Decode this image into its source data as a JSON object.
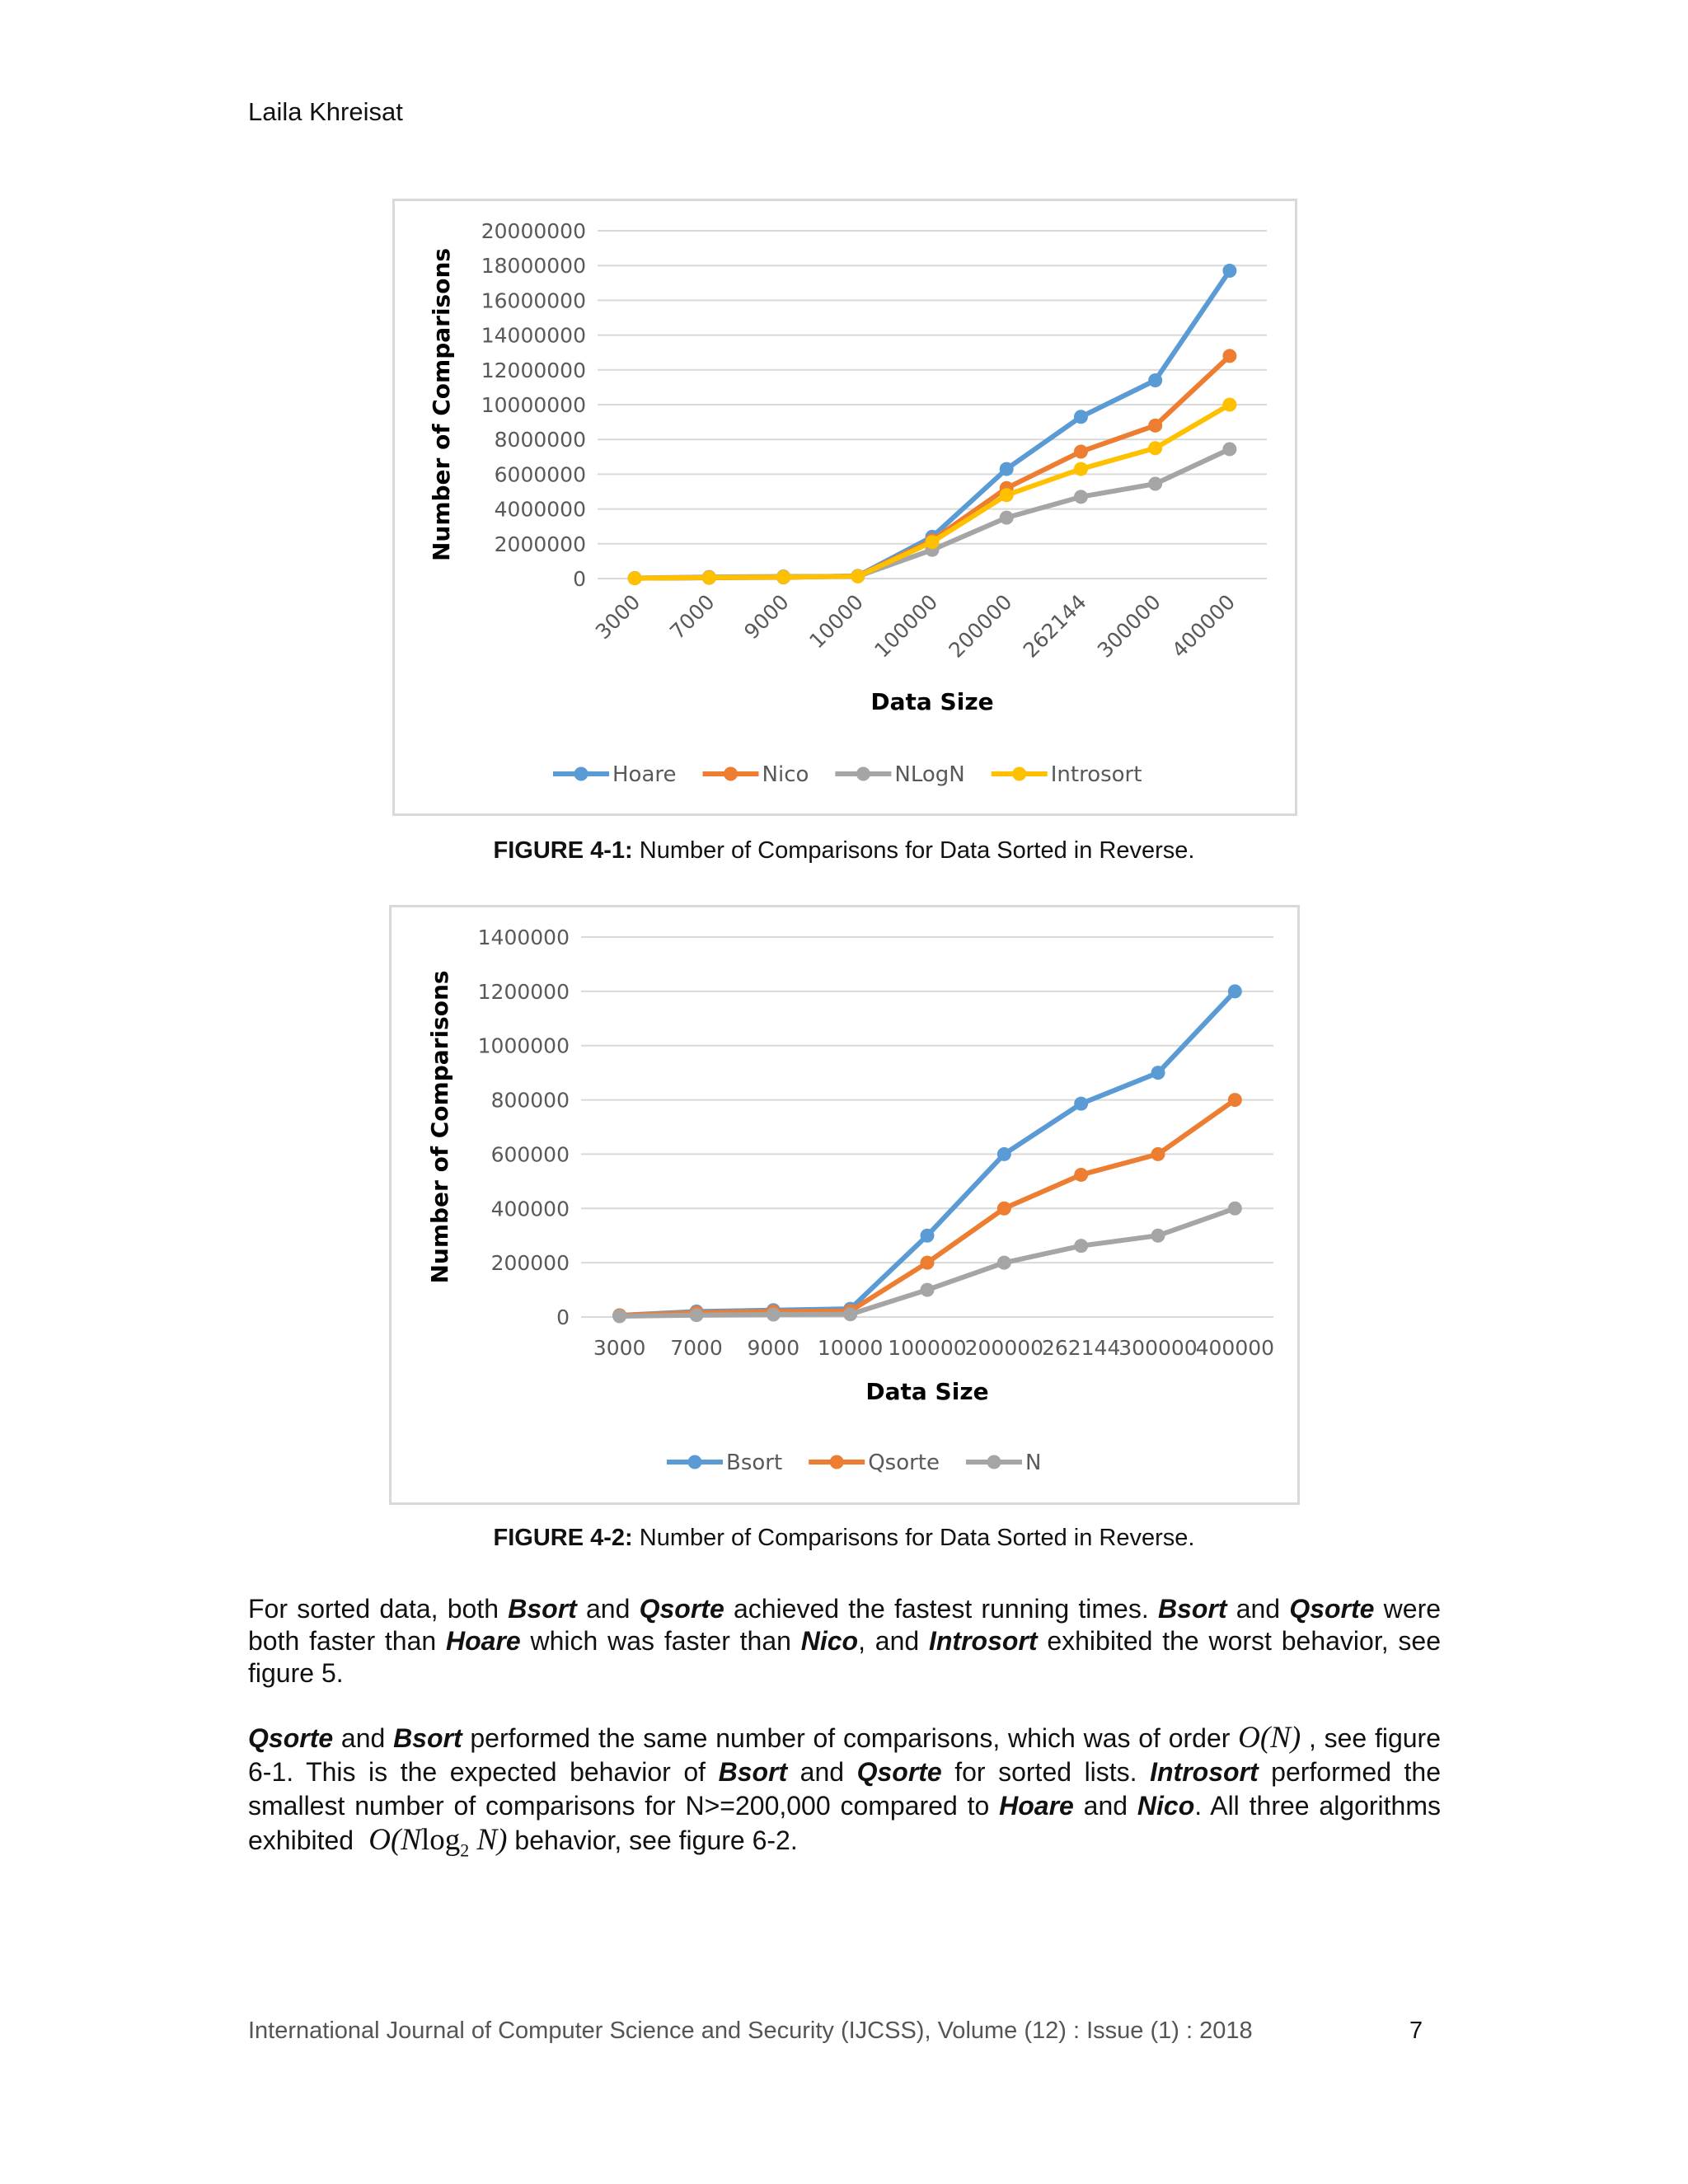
{
  "header": {
    "author": "Laila Khreisat"
  },
  "chart_data": [
    {
      "type": "line",
      "categories": [
        "3000",
        "7000",
        "9000",
        "10000",
        "100000",
        "200000",
        "262144",
        "300000",
        "400000"
      ],
      "series": [
        {
          "name": "Hoare",
          "color": "#5b9bd5",
          "values": [
            20000,
            50000,
            70000,
            150000,
            2400000,
            6300000,
            9300000,
            11400000,
            17700000
          ]
        },
        {
          "name": "Nico",
          "color": "#ed7d31",
          "values": [
            20000,
            50000,
            70000,
            140000,
            2200000,
            5200000,
            7300000,
            8800000,
            12800000
          ]
        },
        {
          "name": "NLogN",
          "color": "#a5a5a5",
          "values": [
            30000,
            90000,
            120000,
            130000,
            1650000,
            3500000,
            4700000,
            5450000,
            7440000
          ]
        },
        {
          "name": "Introsort",
          "color": "#ffc000",
          "values": [
            20000,
            60000,
            80000,
            130000,
            2100000,
            4800000,
            6300000,
            7500000,
            10000000
          ]
        }
      ],
      "yticks": [
        "20000000",
        "18000000",
        "16000000",
        "14000000",
        "12000000",
        "10000000",
        "8000000",
        "6000000",
        "4000000",
        "2000000",
        "0"
      ],
      "ylim": [
        0,
        20000000
      ],
      "xlabel": "Data Size",
      "ylabel": "Number of Comparisons",
      "grid": true,
      "x_tick_rotation": "rotated",
      "legend_position": "bottom"
    },
    {
      "type": "line",
      "categories": [
        "3000",
        "7000",
        "9000",
        "10000",
        "100000",
        "200000",
        "262144",
        "300000",
        "400000"
      ],
      "series": [
        {
          "name": "Bsort",
          "color": "#5b9bd5",
          "values": [
            6000,
            20000,
            25000,
            30000,
            300000,
            600000,
            786000,
            900000,
            1200000
          ]
        },
        {
          "name": "Qsorte",
          "color": "#ed7d31",
          "values": [
            6000,
            16000,
            20000,
            22000,
            200000,
            400000,
            524000,
            600000,
            800000
          ]
        },
        {
          "name": "N",
          "color": "#a5a5a5",
          "values": [
            3000,
            7000,
            9000,
            10000,
            100000,
            200000,
            262144,
            300000,
            400000
          ]
        }
      ],
      "yticks": [
        "1400000",
        "1200000",
        "1000000",
        "800000",
        "600000",
        "400000",
        "200000",
        "0"
      ],
      "ylim": [
        0,
        1400000
      ],
      "xlabel": "Data Size",
      "ylabel": "Number of Comparisons",
      "grid": true,
      "legend_position": "bottom"
    }
  ],
  "captions": {
    "fig1_label": "FIGURE 4-1:",
    "fig1_text": " Number of Comparisons for Data Sorted in Reverse.",
    "fig2_label": "FIGURE 4-2:",
    "fig2_text": " Number of Comparisons for Data Sorted in Reverse."
  },
  "paragraph1": {
    "t1": "For sorted data, both ",
    "b1": "Bsort",
    "t2": " and ",
    "b2": "Qsorte",
    "t3": " achieved the fastest running times. ",
    "b3": "Bsort",
    "t4": " and ",
    "b4": "Qsorte",
    "t5": " were both faster than ",
    "b5": "Hoare",
    "t6": " which was faster than ",
    "b6": "Nico",
    "t7": ", and ",
    "b7": "Introsort",
    "t8": " exhibited the worst behavior, see figure 5."
  },
  "paragraph2": {
    "b1": "Qsorte",
    "t1": " and ",
    "b2": "Bsort",
    "t2": " performed the same number of comparisons, which was of order ",
    "m1": "O(N)",
    "t3": " , see figure 6-1. This is the expected behavior of ",
    "b3": "Bsort",
    "t4": " and ",
    "b4": "Qsorte",
    "t5": " for sorted lists. ",
    "b5": "Introsort",
    "t6": " performed the smallest number of comparisons for N>=200,000 compared to ",
    "b6": "Hoare",
    "t7": " and ",
    "b7": "Nico",
    "t8": ". All three algorithms exhibited ",
    "m2a": "O(N",
    "m2b": "log",
    "m2sub": "2",
    "m2c": "N)",
    "t9": " behavior, see figure 6-2."
  },
  "footer": {
    "journal": "International Journal of Computer Science and Security (IJCSS), Volume (12) : Issue (1) : 2018",
    "page_number": "7"
  }
}
